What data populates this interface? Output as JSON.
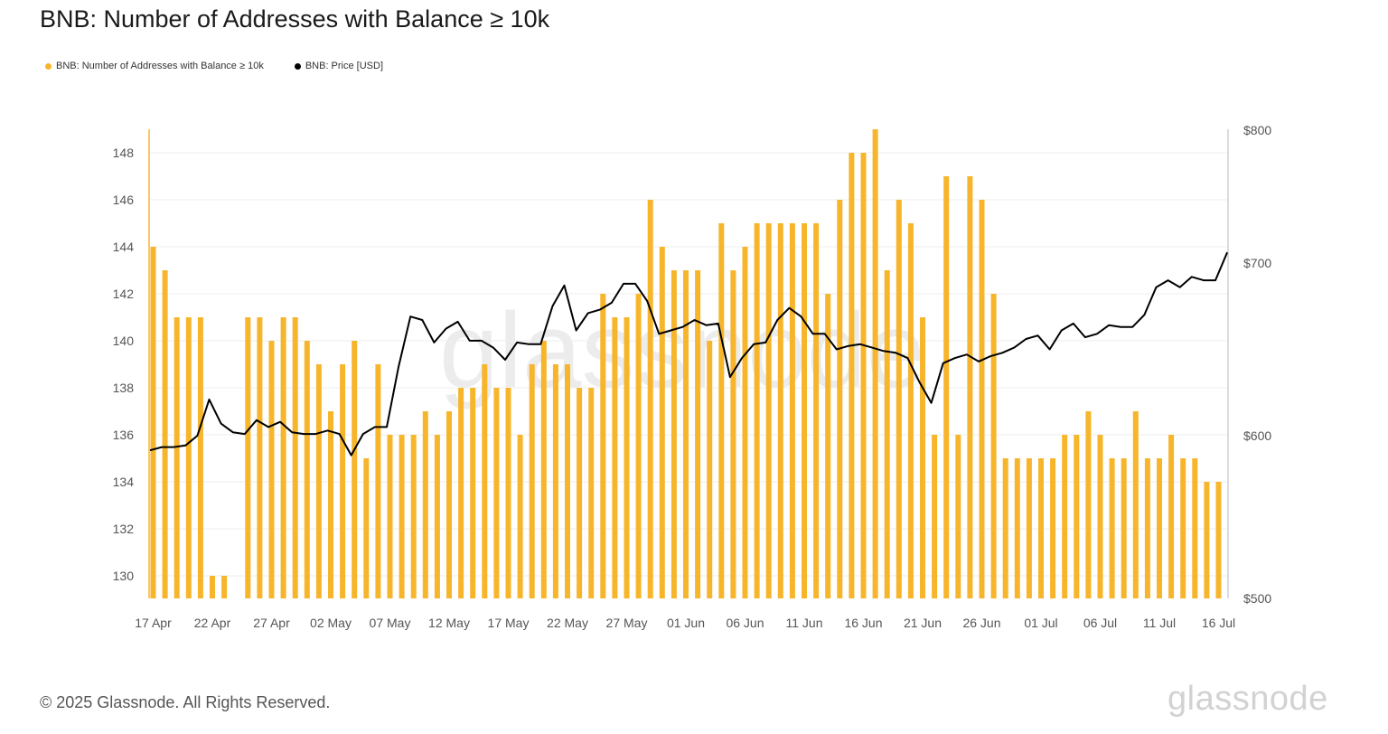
{
  "header": {
    "title": "BNB: Number of Addresses with Balance ≥ 10k"
  },
  "legend": [
    {
      "label": "BNB: Number of Addresses with Balance ≥ 10k",
      "color": "#f7b52b"
    },
    {
      "label": "BNB: Price [USD]",
      "color": "#000000"
    }
  ],
  "footer": {
    "copyright": "© 2025 Glassnode. All Rights Reserved.",
    "logo": "glassnode"
  },
  "chart_data": {
    "type": "bar+line",
    "title": "BNB: Number of Addresses with Balance ≥ 10k",
    "x_tick_labels": [
      "17 Apr",
      "22 Apr",
      "27 Apr",
      "02 May",
      "07 May",
      "12 May",
      "17 May",
      "22 May",
      "27 May",
      "01 Jun",
      "06 Jun",
      "11 Jun",
      "16 Jun",
      "21 Jun",
      "26 Jun",
      "01 Jul",
      "06 Jul",
      "11 Jul",
      "16 Jul"
    ],
    "x_tick_interval_days": 5,
    "left_axis": {
      "ticks": [
        130,
        132,
        134,
        136,
        138,
        140,
        142,
        144,
        146,
        148
      ],
      "range": [
        129,
        149
      ]
    },
    "right_axis": {
      "ticks": [
        {
          "value": 500,
          "label": "$500"
        },
        {
          "value": 600,
          "label": "$600"
        },
        {
          "value": 700,
          "label": "$700"
        },
        {
          "value": 800,
          "label": "$800"
        }
      ]
    },
    "series": [
      {
        "name": "BNB: Number of Addresses with Balance ≥ 10k",
        "kind": "bar",
        "color": "#f7b52b",
        "start_date": "17 Apr",
        "values": [
          144,
          143,
          141,
          141,
          141,
          130,
          130,
          null,
          141,
          141,
          140,
          141,
          141,
          140,
          139,
          137,
          139,
          140,
          135,
          139,
          136,
          136,
          136,
          137,
          136,
          137,
          138,
          138,
          139,
          138,
          138,
          136,
          139,
          140,
          139,
          139,
          138,
          138,
          142,
          141,
          141,
          142,
          146,
          144,
          143,
          143,
          143,
          140,
          145,
          143,
          144,
          145,
          145,
          145,
          145,
          145,
          145,
          142,
          146,
          148,
          148,
          149,
          143,
          146,
          145,
          141,
          136,
          147,
          136,
          147,
          146,
          142,
          135,
          135,
          135,
          135,
          135,
          136,
          136,
          137,
          136,
          135,
          135,
          137,
          135,
          135,
          136,
          135,
          135,
          134,
          134
        ]
      },
      {
        "name": "BNB: Price [USD]",
        "kind": "line",
        "color": "#000000",
        "start_date": "17 Apr",
        "values": [
          591,
          593,
          593,
          594,
          600,
          621,
          607,
          602,
          601,
          609,
          605,
          608,
          602,
          601,
          601,
          603,
          601,
          588,
          601,
          605,
          605,
          640,
          669,
          667,
          654,
          662,
          666,
          655,
          655,
          651,
          644,
          654,
          653,
          653,
          675,
          687,
          661,
          671,
          673,
          677,
          688,
          688,
          678,
          659,
          661,
          663,
          667,
          664,
          665,
          634,
          645,
          653,
          654,
          667,
          674,
          669,
          659,
          659,
          650,
          652,
          653,
          651,
          649,
          648,
          645,
          631,
          619,
          642,
          645,
          647,
          643,
          646,
          648,
          651,
          656,
          658,
          650,
          661,
          665,
          657,
          659,
          664,
          663,
          663,
          670,
          686,
          690,
          686,
          692,
          690,
          690,
          708
        ]
      }
    ]
  }
}
